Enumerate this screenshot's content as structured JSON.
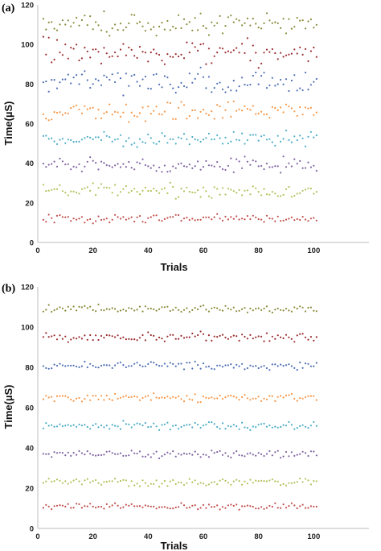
{
  "chart_data": [
    {
      "panel_label": "(a)",
      "type": "scatter",
      "xlabel": "Trials",
      "ylabel": "Time(µS)",
      "xlim": [
        0,
        120
      ],
      "ylim": [
        0,
        120
      ],
      "x_ticks": [
        "0",
        "20",
        "40",
        "60",
        "80",
        "100"
      ],
      "y_ticks": [
        "0",
        "20",
        "40",
        "60",
        "80",
        "100",
        "120"
      ],
      "grid": false,
      "trials": 100,
      "series": [
        {
          "color": "#c0504d",
          "mean": 12,
          "spread": 1.0
        },
        {
          "color": "#b5c05a",
          "mean": 26,
          "spread": 1.6
        },
        {
          "color": "#8064a2",
          "mean": 39,
          "spread": 1.8
        },
        {
          "color": "#4bacc6",
          "mean": 52,
          "spread": 1.8
        },
        {
          "color": "#f79646",
          "mean": 66,
          "spread": 2.4
        },
        {
          "color": "#4f6fb5",
          "mean": 81,
          "spread": 2.8
        },
        {
          "color": "#9b2d30",
          "mean": 96,
          "spread": 3.2
        },
        {
          "color": "#8a8a3a",
          "mean": 110,
          "spread": 3.0
        }
      ]
    },
    {
      "panel_label": "(b)",
      "type": "scatter",
      "xlabel": "Trials",
      "ylabel": "Time(µS)",
      "xlim": [
        0,
        120
      ],
      "ylim": [
        0,
        120
      ],
      "x_ticks": [
        "0",
        "20",
        "40",
        "60",
        "80",
        "100"
      ],
      "y_ticks": [
        "0",
        "20",
        "40",
        "60",
        "80",
        "100",
        "120"
      ],
      "grid": false,
      "trials": 100,
      "series": [
        {
          "color": "#c0504d",
          "mean": 11,
          "spread": 0.8
        },
        {
          "color": "#b5c05a",
          "mean": 23,
          "spread": 0.9
        },
        {
          "color": "#8064a2",
          "mean": 37,
          "spread": 0.9
        },
        {
          "color": "#4bacc6",
          "mean": 51,
          "spread": 0.9
        },
        {
          "color": "#f79646",
          "mean": 65,
          "spread": 0.9
        },
        {
          "color": "#4f6fb5",
          "mean": 81,
          "spread": 0.9
        },
        {
          "color": "#9b2d30",
          "mean": 95,
          "spread": 1.0
        },
        {
          "color": "#8a8a3a",
          "mean": 109,
          "spread": 0.9
        }
      ]
    }
  ]
}
